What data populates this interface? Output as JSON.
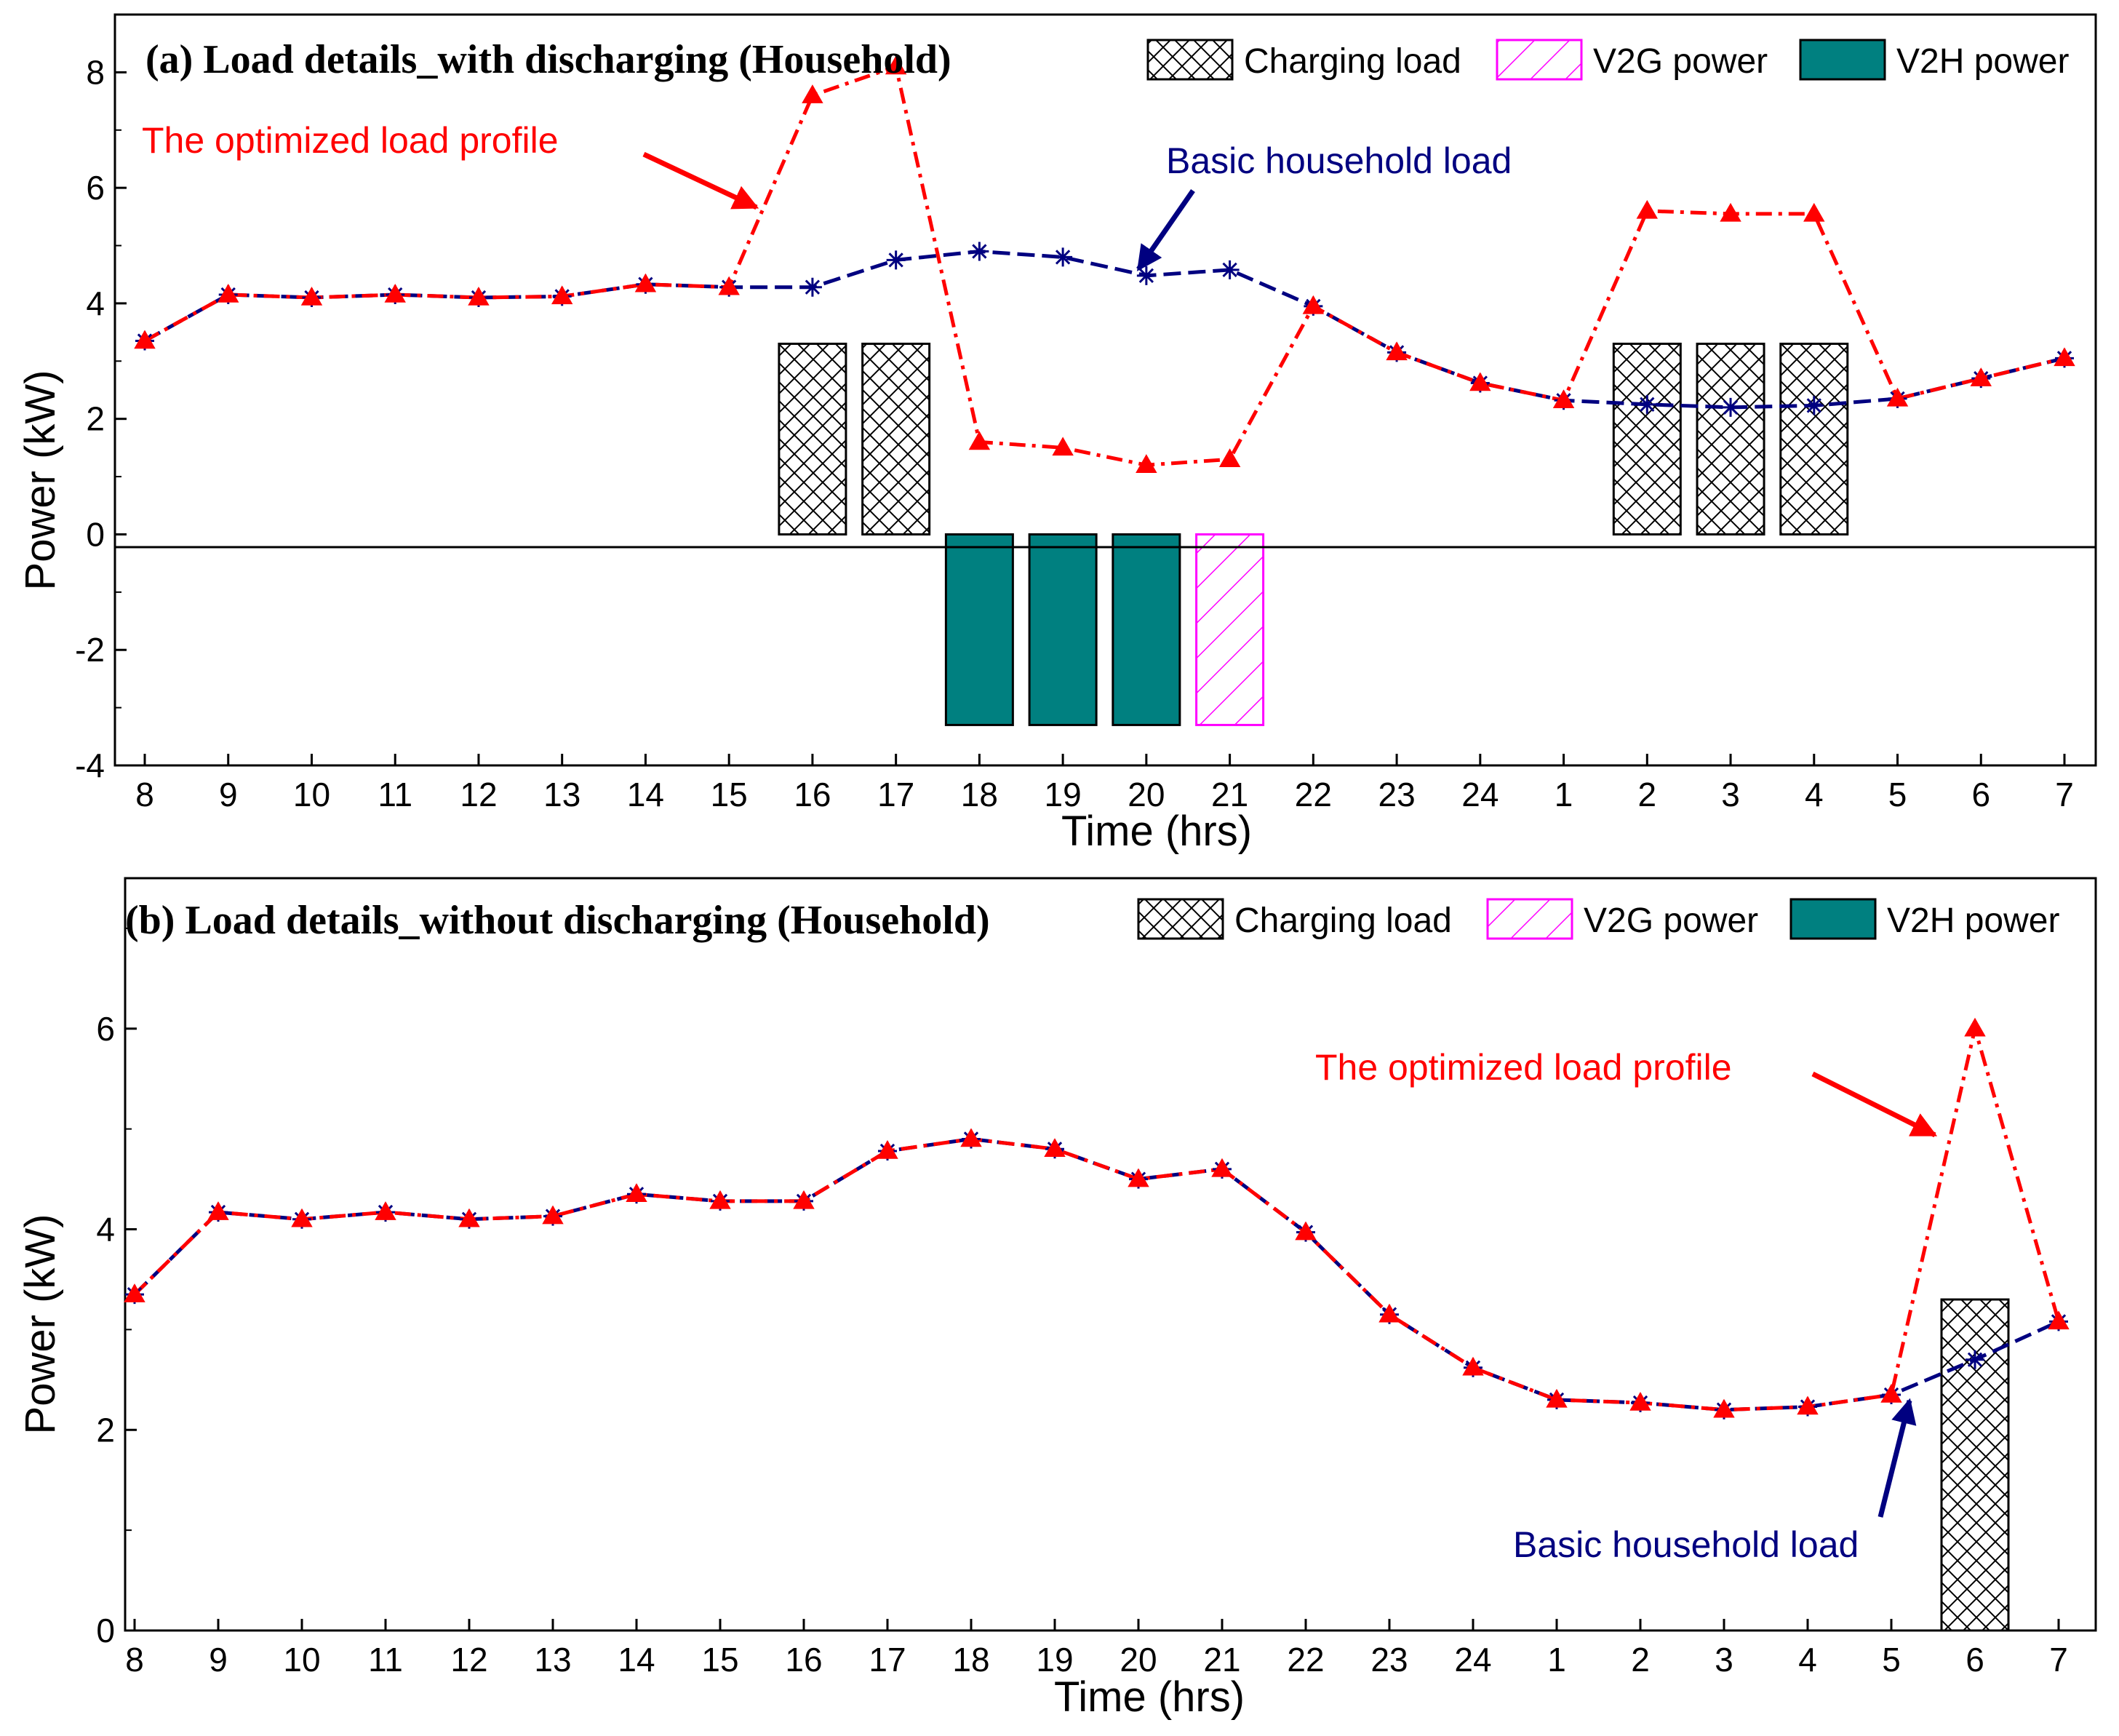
{
  "colors": {
    "optimized": "#ff0000",
    "basic": "#000080",
    "v2g": "#ff00ff",
    "v2h": "#008080",
    "charging_fill": "#ffffff",
    "axis": "#000000"
  },
  "chart_data": [
    {
      "type": "line",
      "title": "(a) Load details_with discharging  (Household)",
      "xlabel": "Time (hrs)",
      "ylabel": "Power (kW)",
      "ylim": [
        -4,
        9
      ],
      "yticks": [
        -4,
        -2,
        0,
        2,
        4,
        6,
        8
      ],
      "yticklabels": [
        "-4",
        "-2",
        "0",
        "2",
        "4",
        "6",
        "8"
      ],
      "categories": [
        "8",
        "9",
        "10",
        "11",
        "12",
        "13",
        "14",
        "15",
        "16",
        "17",
        "18",
        "19",
        "20",
        "21",
        "22",
        "23",
        "24",
        "1",
        "2",
        "3",
        "4",
        "5",
        "6",
        "7"
      ],
      "series": [
        {
          "name": "The optimized load profile",
          "color": "#ff0000",
          "marker": "triangle",
          "values": [
            3.35,
            4.15,
            4.1,
            4.15,
            4.1,
            4.12,
            4.33,
            4.28,
            7.6,
            8.1,
            1.6,
            1.5,
            1.2,
            1.3,
            3.95,
            3.15,
            2.62,
            2.32,
            5.6,
            5.55,
            5.55,
            2.35,
            2.7,
            3.05
          ]
        },
        {
          "name": "Basic household load",
          "color": "#000080",
          "marker": "star",
          "values": [
            3.35,
            4.15,
            4.1,
            4.15,
            4.1,
            4.12,
            4.33,
            4.28,
            4.28,
            4.75,
            4.9,
            4.8,
            4.48,
            4.58,
            3.95,
            3.15,
            2.62,
            2.32,
            2.25,
            2.2,
            2.23,
            2.35,
            2.7,
            3.05
          ]
        }
      ],
      "bars": [
        {
          "name": "Charging load",
          "pattern": "crosshatch",
          "categories": [
            "16",
            "17",
            "2",
            "3",
            "4"
          ],
          "values": [
            3.3,
            3.3,
            3.3,
            3.3,
            3.3
          ]
        },
        {
          "name": "V2G power",
          "pattern": "diagonal",
          "categories": [
            "21"
          ],
          "values": [
            -3.3
          ]
        },
        {
          "name": "V2H power",
          "pattern": "solid",
          "categories": [
            "18",
            "19",
            "20"
          ],
          "values": [
            -3.3,
            -3.3,
            -3.3
          ]
        }
      ],
      "legend": [
        "Charging load",
        "V2G power",
        "V2H power"
      ],
      "annotations": [
        {
          "text": "The optimized load profile",
          "color": "#ff0000"
        },
        {
          "text": "Basic household load",
          "color": "#000080"
        }
      ]
    },
    {
      "type": "line",
      "title": "(b) Load details_without discharging (Household)",
      "xlabel": "Time (hrs)",
      "ylabel": "Power (kW)",
      "ylim": [
        0,
        7.5
      ],
      "yticks": [
        0,
        2,
        4,
        6
      ],
      "yticklabels": [
        "0",
        "2",
        "4",
        "6"
      ],
      "categories": [
        "8",
        "9",
        "10",
        "11",
        "12",
        "13",
        "14",
        "15",
        "16",
        "17",
        "18",
        "19",
        "20",
        "21",
        "22",
        "23",
        "24",
        "1",
        "2",
        "3",
        "4",
        "5",
        "6",
        "7"
      ],
      "series": [
        {
          "name": "The optimized load profile",
          "color": "#ff0000",
          "marker": "triangle",
          "values": [
            3.35,
            4.17,
            4.1,
            4.17,
            4.1,
            4.13,
            4.35,
            4.28,
            4.28,
            4.78,
            4.9,
            4.8,
            4.5,
            4.6,
            3.97,
            3.15,
            2.62,
            2.3,
            2.27,
            2.2,
            2.23,
            2.35,
            6.0,
            3.08
          ]
        },
        {
          "name": "Basic household load",
          "color": "#000080",
          "marker": "star",
          "values": [
            3.35,
            4.17,
            4.1,
            4.17,
            4.1,
            4.13,
            4.35,
            4.28,
            4.28,
            4.78,
            4.9,
            4.8,
            4.5,
            4.6,
            3.97,
            3.15,
            2.62,
            2.3,
            2.27,
            2.2,
            2.23,
            2.35,
            2.7,
            3.08
          ]
        }
      ],
      "bars": [
        {
          "name": "Charging load",
          "pattern": "crosshatch",
          "categories": [
            "6"
          ],
          "values": [
            3.3
          ]
        }
      ],
      "legend": [
        "Charging load",
        "V2G power",
        "V2H power"
      ],
      "annotations": [
        {
          "text": "The optimized load profile",
          "color": "#ff0000"
        },
        {
          "text": "Basic household load",
          "color": "#000080"
        }
      ]
    }
  ]
}
